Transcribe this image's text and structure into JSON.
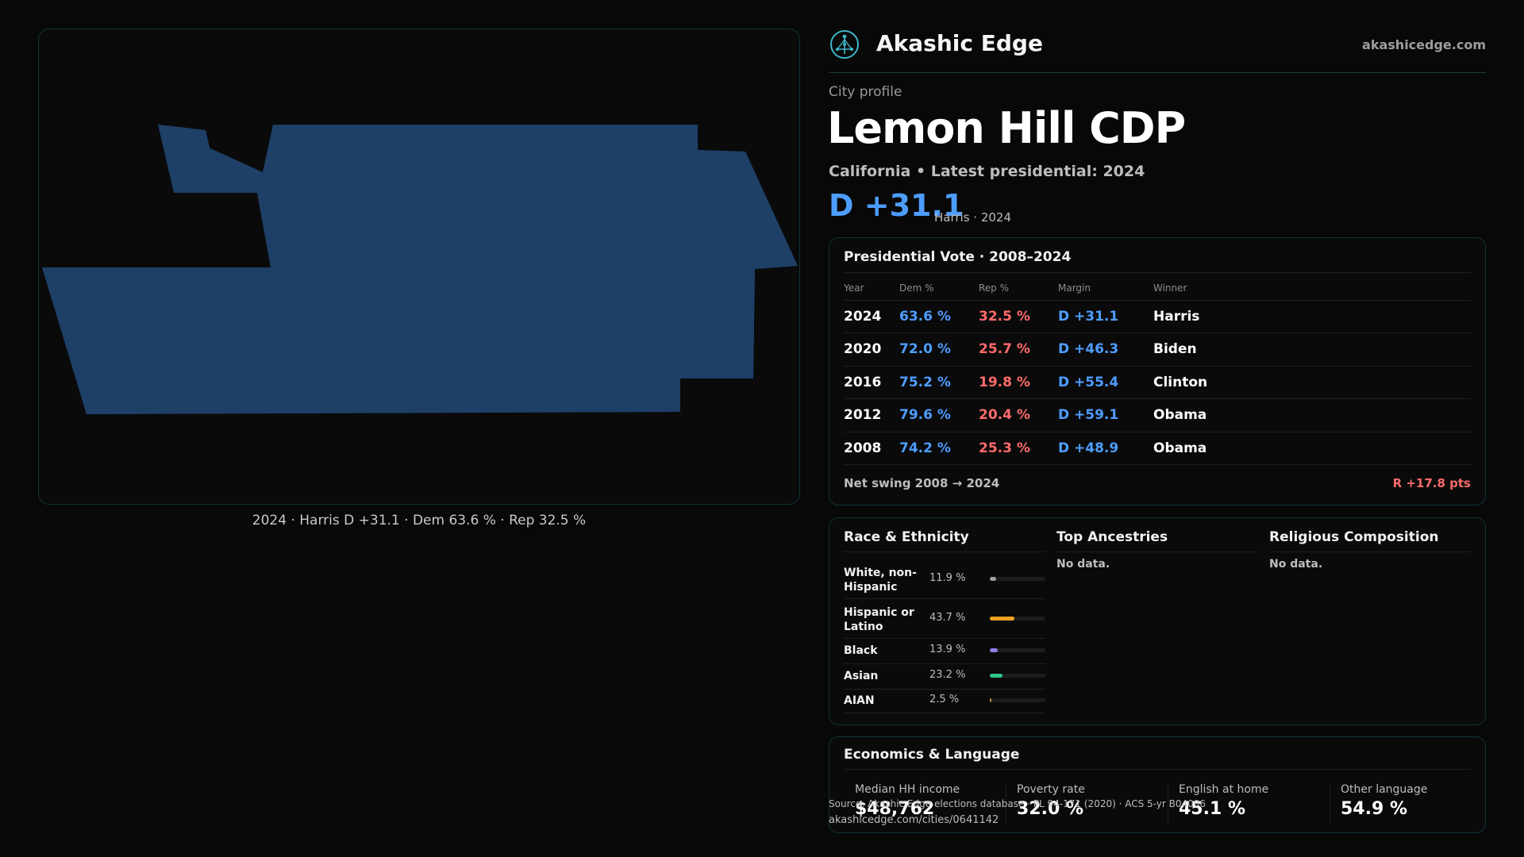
{
  "header": {
    "brand": "Akashic Edge",
    "site": "akashicedge.com",
    "logo_icon": "tree-of-life-icon",
    "accent": "#3fb6c9"
  },
  "profile": {
    "kicker": "City profile",
    "title": "Lemon Hill CDP",
    "subtitle": "California • Latest presidential: 2024",
    "margin": "D +31.1",
    "margin_note": "Harris · 2024"
  },
  "map": {
    "caption": "2024 · Harris D +31.1 · Dem 63.6 % · Rep 32.5 %",
    "fill_color": "#1e3f66"
  },
  "presidential": {
    "title": "Presidential Vote · 2008–2024",
    "headers": [
      "Year",
      "Dem %",
      "Rep %",
      "Margin",
      "Winner"
    ],
    "rows": [
      {
        "year": "2024",
        "dem": "63.6 %",
        "rep": "32.5 %",
        "margin": "D +31.1",
        "winner": "Harris"
      },
      {
        "year": "2020",
        "dem": "72.0 %",
        "rep": "25.7 %",
        "margin": "D +46.3",
        "winner": "Biden"
      },
      {
        "year": "2016",
        "dem": "75.2 %",
        "rep": "19.8 %",
        "margin": "D +55.4",
        "winner": "Clinton"
      },
      {
        "year": "2012",
        "dem": "79.6 %",
        "rep": "20.4 %",
        "margin": "D +59.1",
        "winner": "Obama"
      },
      {
        "year": "2008",
        "dem": "74.2 %",
        "rep": "25.3 %",
        "margin": "D +48.9",
        "winner": "Obama"
      }
    ],
    "swing_label": "Net swing 2008 → 2024",
    "swing_value": "R +17.8 pts"
  },
  "race": {
    "title": "Race & Ethnicity",
    "rows": [
      {
        "label": "White, non-Hispanic",
        "pct": "11.9 %",
        "share": 0.119,
        "color": "#9aa0a6"
      },
      {
        "label": "Hispanic or Latino",
        "pct": "43.7 %",
        "share": 0.437,
        "color": "#f0a021"
      },
      {
        "label": "Black",
        "pct": "13.9 %",
        "share": 0.139,
        "color": "#8f7ee8"
      },
      {
        "label": "Asian",
        "pct": "23.2 %",
        "share": 0.232,
        "color": "#2ec48a"
      },
      {
        "label": "AIAN",
        "pct": "2.5 %",
        "share": 0.025,
        "color": "#b5894a"
      }
    ]
  },
  "ancestries": {
    "title": "Top Ancestries",
    "empty": "No data."
  },
  "religion": {
    "title": "Religious Composition",
    "empty": "No data."
  },
  "economics": {
    "title": "Economics & Language",
    "stats": [
      {
        "label": "Median HH income",
        "value": "$48,762"
      },
      {
        "label": "Poverty rate",
        "value": "32.0 %"
      },
      {
        "label": "English at home",
        "value": "45.1 %"
      },
      {
        "label": "Other language",
        "value": "54.9 %"
      }
    ]
  },
  "footer": {
    "source": "Source: Akashic Edge elections database · PL 94-171 (2020) · ACS 5-yr B04006",
    "url": "akashicedge.com/cities/0641142"
  }
}
